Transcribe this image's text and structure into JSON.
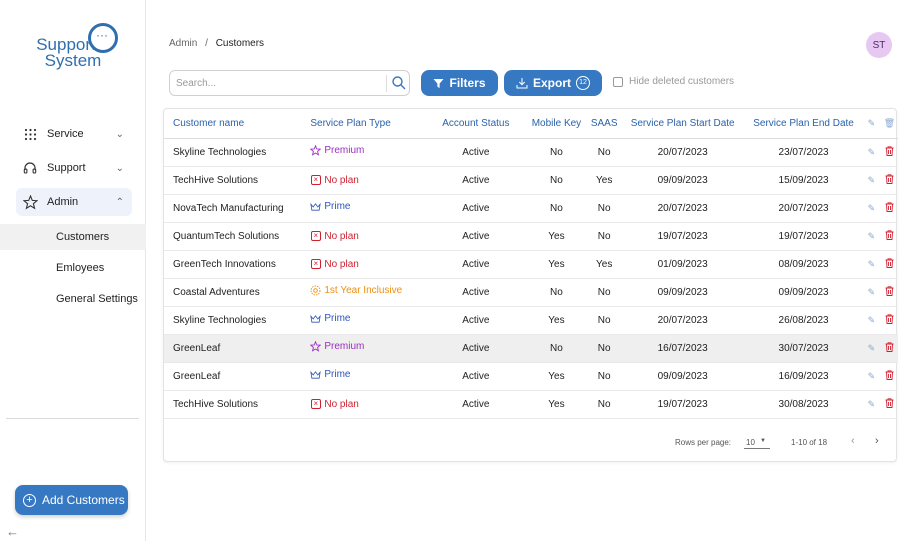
{
  "logo": {
    "line1": "Support",
    "line2": "System"
  },
  "sidebar": {
    "items": [
      {
        "label": "Service",
        "icon": "grid-dots-icon",
        "chevron": "⌄"
      },
      {
        "label": "Support",
        "icon": "headphones-icon",
        "chevron": "⌄"
      },
      {
        "label": "Admin",
        "icon": "star-icon",
        "chevron": "⌃"
      }
    ],
    "subitems": [
      {
        "label": "Customers"
      },
      {
        "label": "Emloyees"
      },
      {
        "label": "General Settings"
      }
    ],
    "add_button": "Add Customers",
    "back_icon": "arrow-left-icon"
  },
  "header": {
    "breadcrumb_root": "Admin",
    "breadcrumb_sep": "/",
    "breadcrumb_current": "Customers",
    "avatar_initials": "ST"
  },
  "toolbar": {
    "search_placeholder": "Search...",
    "filters_label": "Filters",
    "export_label": "Export",
    "export_count": "12",
    "hide_deleted_label": "Hide deleted customers"
  },
  "table": {
    "columns": [
      "Customer name",
      "Service Plan Type",
      "Account Status",
      "Mobile Key",
      "SAAS",
      "Service Plan Start Date",
      "Service Plan End Date"
    ],
    "rows": [
      {
        "name": "Skyline Technologies",
        "plan": "Premium",
        "plan_kind": "premium",
        "status": "Active",
        "mobile": "No",
        "saas": "No",
        "start": "20/07/2023",
        "end": "23/07/2023"
      },
      {
        "name": "TechHive Solutions",
        "plan": "No plan",
        "plan_kind": "noplan",
        "status": "Active",
        "mobile": "No",
        "saas": "Yes",
        "start": "09/09/2023",
        "end": "15/09/2023"
      },
      {
        "name": "NovaTech Manufacturing",
        "plan": "Prime",
        "plan_kind": "prime",
        "status": "Active",
        "mobile": "No",
        "saas": "No",
        "start": "20/07/2023",
        "end": "20/07/2023"
      },
      {
        "name": "QuantumTech Solutions",
        "plan": "No plan",
        "plan_kind": "noplan",
        "status": "Active",
        "mobile": "Yes",
        "saas": "No",
        "start": "19/07/2023",
        "end": "19/07/2023"
      },
      {
        "name": "GreenTech Innovations",
        "plan": "No plan",
        "plan_kind": "noplan",
        "status": "Active",
        "mobile": "Yes",
        "saas": "Yes",
        "start": "01/09/2023",
        "end": "08/09/2023"
      },
      {
        "name": "Coastal Adventures",
        "plan": "1st Year Inclusive",
        "plan_kind": "firstyear",
        "status": "Active",
        "mobile": "No",
        "saas": "No",
        "start": "09/09/2023",
        "end": "09/09/2023"
      },
      {
        "name": "Skyline Technologies",
        "plan": "Prime",
        "plan_kind": "prime",
        "status": "Active",
        "mobile": "Yes",
        "saas": "No",
        "start": "20/07/2023",
        "end": "26/08/2023"
      },
      {
        "name": "GreenLeaf",
        "plan": "Premium",
        "plan_kind": "premium",
        "status": "Active",
        "mobile": "No",
        "saas": "No",
        "start": "16/07/2023",
        "end": "30/07/2023",
        "highlighted": true
      },
      {
        "name": "GreenLeaf",
        "plan": "Prime",
        "plan_kind": "prime",
        "status": "Active",
        "mobile": "Yes",
        "saas": "No",
        "start": "09/09/2023",
        "end": "16/09/2023"
      },
      {
        "name": "TechHive Solutions",
        "plan": "No plan",
        "plan_kind": "noplan",
        "status": "Active",
        "mobile": "Yes",
        "saas": "No",
        "start": "19/07/2023",
        "end": "30/08/2023"
      }
    ]
  },
  "pagination": {
    "rows_per_page_label": "Rows per page:",
    "rows_per_page_value": "10",
    "range": "1-10 of 18"
  },
  "colors": {
    "accent": "#3778c2",
    "premium": "#9b2fc2",
    "noplan": "#d21f2f",
    "prime": "#2b56b8",
    "firstyear": "#ef8f12"
  }
}
